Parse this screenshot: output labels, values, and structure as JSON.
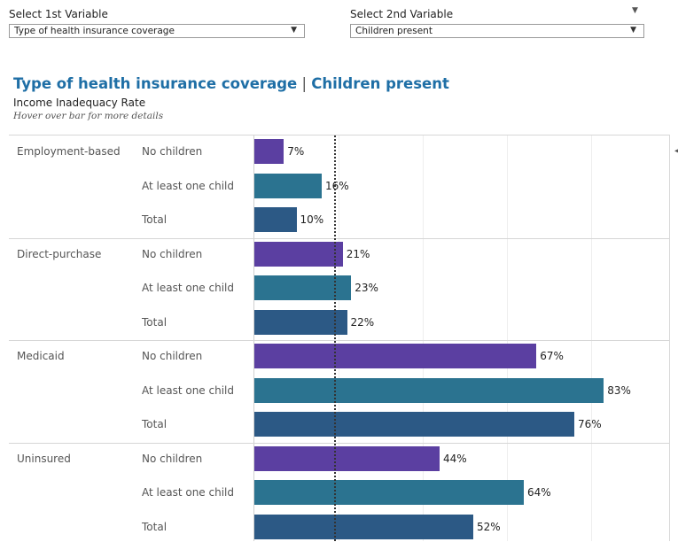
{
  "controls": {
    "first": {
      "label": "Select 1st Variable",
      "value": "Type of health insurance coverage"
    },
    "second": {
      "label": "Select 2nd Variable",
      "value": "Children present"
    },
    "arrow_glyph": "▼",
    "corner_glyph": "▼"
  },
  "header": {
    "title_part1": "Type of health insurance coverage",
    "title_separator": " | ",
    "title_part2": "Children present",
    "subtitle": "Income Inadequacy Rate",
    "hint": "Hover over bar for more details"
  },
  "colors": {
    "no_children": "#5b3fa1",
    "at_least_one_child": "#2b7390",
    "total": "#2c5985",
    "title": "#1f6fa6"
  },
  "chart_data": {
    "type": "bar",
    "orientation": "horizontal",
    "xlim": [
      0,
      100
    ],
    "reference_line": 19,
    "value_suffix": "%",
    "groups": [
      {
        "name": "Employment-based",
        "rows": [
          {
            "label": "No children",
            "value": 7
          },
          {
            "label": "At least one child",
            "value": 16
          },
          {
            "label": "Total",
            "value": 10
          }
        ]
      },
      {
        "name": "Direct-purchase",
        "rows": [
          {
            "label": "No children",
            "value": 21
          },
          {
            "label": "At least one child",
            "value": 23
          },
          {
            "label": "Total",
            "value": 22
          }
        ]
      },
      {
        "name": "Medicaid",
        "rows": [
          {
            "label": "No children",
            "value": 67
          },
          {
            "label": "At least one child",
            "value": 83
          },
          {
            "label": "Total",
            "value": 76
          }
        ]
      },
      {
        "name": "Uninsured",
        "rows": [
          {
            "label": "No children",
            "value": 44
          },
          {
            "label": "At least one child",
            "value": 64
          },
          {
            "label": "Total",
            "value": 52
          }
        ]
      }
    ]
  }
}
